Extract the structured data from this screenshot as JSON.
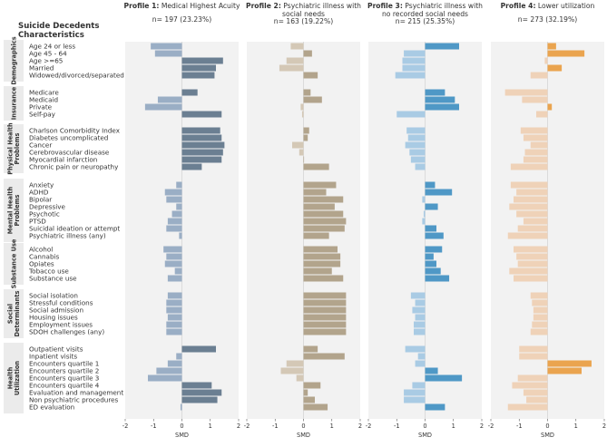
{
  "chart_data": {
    "type": "bar",
    "orientation": "horizontal",
    "subtitle_header": "Suicide Decedents Characteristics",
    "xlabel": "SMD",
    "xlim": [
      -2,
      2
    ],
    "xticks": [
      "-2",
      "-1",
      "0",
      "1",
      "2"
    ],
    "groups": [
      {
        "name": "Demographics",
        "items": [
          "Age 24 or less",
          "Age 45 - 64",
          "Age >=65",
          "Married",
          "Widowed/divorced/separated"
        ]
      },
      {
        "name": "Insurance",
        "items": [
          "Medicare",
          "Medicaid",
          "Private",
          "Self-pay"
        ]
      },
      {
        "name": "Physical Health Problems",
        "items": [
          "Charlson Comorbidity Index",
          "Diabetes uncomplicated",
          "Cancer",
          "Cerebrovascular disease",
          "Myocardial infarction",
          "Chronic pain or neuropathy"
        ]
      },
      {
        "name": "Mental Health Problems",
        "items": [
          "Anxiety",
          "ADHD",
          "Bipolar",
          "Depressive",
          "Psychotic",
          "PTSD",
          "Suicidal ideation or attempt",
          "Psychiatric illness (any)"
        ]
      },
      {
        "name": "Substance Use",
        "items": [
          "Alcohol",
          "Cannabis",
          "Opiates",
          "Tobacco use",
          "Substance use"
        ]
      },
      {
        "name": "Social Determinants",
        "items": [
          "Social isolation",
          "Stressful conditions",
          "Social admission",
          "Housing issues",
          "Employment issues",
          "SDOH challenges (any)"
        ]
      },
      {
        "name": "Health Utilization",
        "items": [
          "Outpatient visits",
          "Inpatient visits",
          "Encounters quartile 1",
          "Encounters quartile 2",
          "Encounters quartile 3",
          "Encounters quartile 4",
          "Evaluation and management",
          "Non psychiatric procedures",
          "ED evaluation"
        ]
      }
    ],
    "series": [
      {
        "name": "Profile 1",
        "title_bold": "Profile 1:",
        "title_rest": "Medical Highest Acuity",
        "title_line2": "",
        "n_label": "n= 197 (23.23%)",
        "color_pos": "#6b7f92",
        "color_neg": "#9aaec5",
        "values": [
          -1.1,
          -0.95,
          1.45,
          1.2,
          1.15,
          0.55,
          -0.85,
          -1.3,
          1.4,
          1.35,
          1.4,
          1.5,
          1.45,
          1.4,
          0.7,
          -0.2,
          -0.6,
          -0.55,
          -0.2,
          -0.35,
          -0.5,
          -0.55,
          -0.1,
          -0.65,
          -0.55,
          -0.6,
          -0.25,
          -0.5,
          -0.5,
          -0.55,
          -0.55,
          -0.5,
          -0.55,
          -0.55,
          1.2,
          -0.2,
          -0.5,
          -0.9,
          -1.2,
          1.05,
          1.4,
          1.25,
          -0.05
        ]
      },
      {
        "name": "Profile 2",
        "title_bold": "Profile 2:",
        "title_rest": "Psychiatric illness with",
        "title_line2": "social needs",
        "n_label": "n= 163 (19.22%)",
        "color_pos": "#b2a48c",
        "color_neg": "#d4c8b6",
        "values": [
          -0.45,
          0.3,
          -0.6,
          -0.85,
          0.5,
          0.25,
          0.65,
          -0.1,
          -0.05,
          0.2,
          0.15,
          -0.4,
          -0.15,
          0.0,
          0.9,
          1.15,
          0.8,
          1.4,
          1.1,
          1.4,
          1.5,
          1.45,
          0.9,
          1.2,
          1.3,
          1.3,
          1.0,
          1.4,
          1.5,
          1.5,
          1.5,
          1.5,
          1.5,
          1.5,
          0.5,
          1.45,
          -0.6,
          -0.8,
          -0.25,
          0.6,
          0.15,
          0.4,
          0.85
        ]
      },
      {
        "name": "Profile 3",
        "title_bold": "Profile 3:",
        "title_rest": "Psychiatric illness with",
        "title_line2": "no recorded social needs",
        "n_label": "n= 215 (25.35%)",
        "color_pos": "#4f98c6",
        "color_neg": "#a9cbe4",
        "values": [
          1.2,
          -0.75,
          -0.8,
          -0.8,
          -1.05,
          0.7,
          1.05,
          1.2,
          -1.0,
          -0.65,
          -0.6,
          -0.7,
          -0.55,
          -0.5,
          -0.35,
          0.35,
          0.95,
          -0.1,
          0.45,
          -0.05,
          -0.1,
          0.4,
          0.65,
          0.6,
          0.3,
          0.4,
          0.55,
          0.85,
          -0.5,
          -0.35,
          -0.45,
          -0.35,
          -0.4,
          -0.4,
          -0.7,
          -0.25,
          -0.35,
          0.45,
          1.3,
          -0.45,
          -0.75,
          -0.75,
          0.7
        ]
      },
      {
        "name": "Profile 4",
        "title_bold": "Profile 4:",
        "title_rest": "Lower utilization",
        "title_line2": "",
        "n_label": "n= 273 (32.19%)",
        "color_pos": "#eaa44f",
        "color_neg": "#efd2b8",
        "values": [
          0.3,
          1.3,
          -0.1,
          0.5,
          -0.6,
          -1.5,
          -0.9,
          0.15,
          -0.4,
          -0.95,
          -0.85,
          -0.6,
          -0.8,
          -0.85,
          -1.3,
          -1.3,
          -1.1,
          -1.2,
          -1.35,
          -1.1,
          -0.85,
          -1.05,
          -1.4,
          -1.2,
          -1.1,
          -1.05,
          -1.35,
          -1.2,
          -0.6,
          -0.55,
          -0.5,
          -0.5,
          -0.55,
          -0.6,
          -1.0,
          -1.0,
          1.55,
          1.2,
          -1.05,
          -1.25,
          -0.85,
          -0.75,
          -1.4
        ]
      }
    ]
  }
}
